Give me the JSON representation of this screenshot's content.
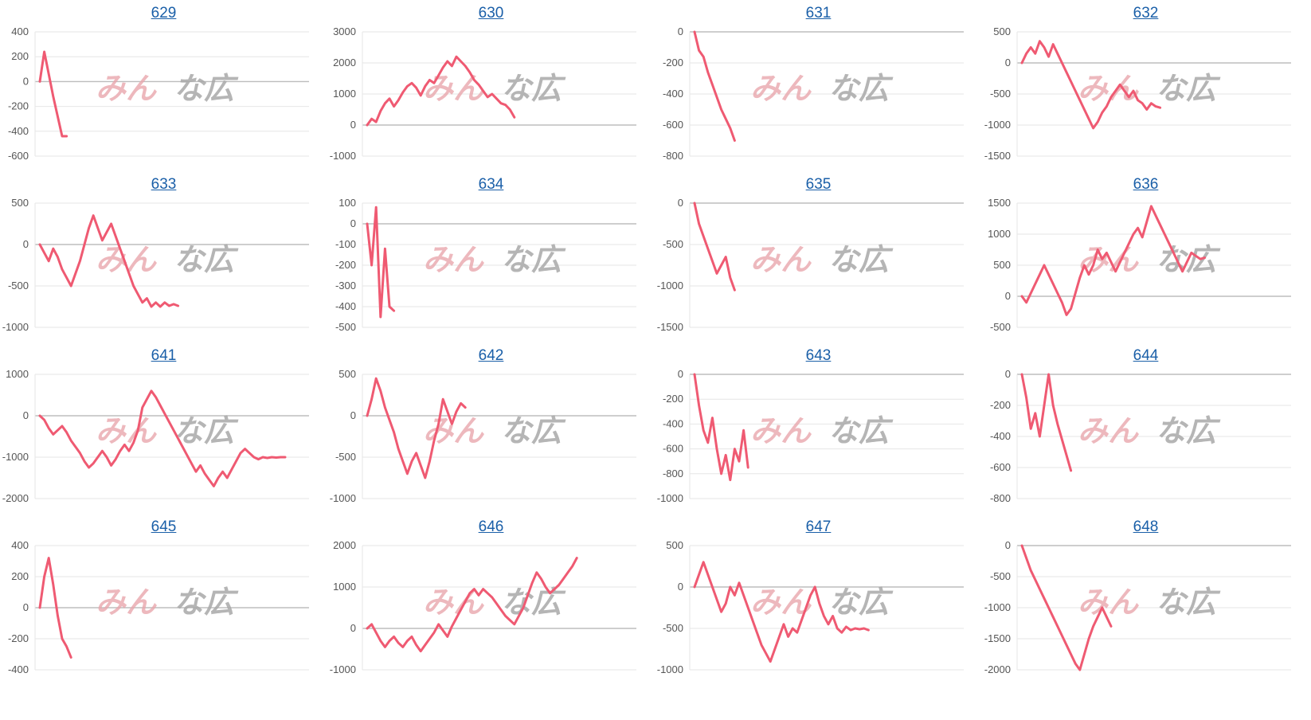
{
  "watermark": {
    "left": "みん",
    "right": "な広"
  },
  "colors": {
    "line": "#ef5a72",
    "grid": "#e6e6e6",
    "zero": "#bdbdbd",
    "title": "#1a5fa8"
  },
  "chart_data": [
    {
      "type": "line",
      "title": "629",
      "ylim": [
        -600,
        400
      ],
      "yticks": [
        400,
        200,
        0,
        -200,
        -400,
        -600
      ],
      "x": [
        0,
        1,
        2,
        3,
        4,
        5,
        6
      ],
      "values": [
        0,
        240,
        60,
        -120,
        -280,
        -440,
        -440
      ]
    },
    {
      "type": "line",
      "title": "630",
      "ylim": [
        -1000,
        3000
      ],
      "yticks": [
        3000,
        2000,
        1000,
        0,
        -1000
      ],
      "x": [
        0,
        1,
        2,
        3,
        4,
        5,
        6,
        7,
        8,
        9,
        10,
        11,
        12,
        13,
        14,
        15,
        16,
        17,
        18,
        19,
        20,
        21,
        22,
        23,
        24,
        25,
        26,
        27,
        28,
        29,
        30,
        31,
        32,
        33
      ],
      "values": [
        0,
        200,
        100,
        450,
        700,
        850,
        600,
        800,
        1050,
        1250,
        1350,
        1200,
        950,
        1250,
        1450,
        1350,
        1600,
        1850,
        2050,
        1900,
        2200,
        2050,
        1900,
        1700,
        1450,
        1300,
        1100,
        900,
        1000,
        850,
        700,
        650,
        500,
        250
      ]
    },
    {
      "type": "line",
      "title": "631",
      "ylim": [
        -800,
        0
      ],
      "yticks": [
        0,
        -200,
        -400,
        -600,
        -800
      ],
      "x": [
        0,
        1,
        2,
        3,
        4,
        5,
        6,
        7,
        8,
        9
      ],
      "values": [
        0,
        -120,
        -160,
        -260,
        -340,
        -420,
        -500,
        -560,
        -620,
        -700
      ]
    },
    {
      "type": "line",
      "title": "632",
      "ylim": [
        -1500,
        500
      ],
      "yticks": [
        500,
        0,
        -500,
        -1000,
        -1500
      ],
      "x": [
        0,
        1,
        2,
        3,
        4,
        5,
        6,
        7,
        8,
        9,
        10,
        11,
        12,
        13,
        14,
        15,
        16,
        17,
        18,
        19,
        20,
        21,
        22,
        23,
        24,
        25,
        26,
        27,
        28,
        29,
        30,
        31
      ],
      "values": [
        0,
        150,
        250,
        150,
        350,
        250,
        100,
        300,
        150,
        0,
        -150,
        -300,
        -450,
        -600,
        -750,
        -900,
        -1050,
        -950,
        -800,
        -700,
        -550,
        -450,
        -350,
        -450,
        -550,
        -450,
        -600,
        -650,
        -750,
        -650,
        -700,
        -720
      ]
    },
    {
      "type": "line",
      "title": "633",
      "ylim": [
        -1000,
        500
      ],
      "yticks": [
        500,
        0,
        -500,
        -1000
      ],
      "x": [
        0,
        1,
        2,
        3,
        4,
        5,
        6,
        7,
        8,
        9,
        10,
        11,
        12,
        13,
        14,
        15,
        16,
        17,
        18,
        19,
        20,
        21,
        22,
        23,
        24,
        25,
        26,
        27,
        28,
        29,
        30,
        31
      ],
      "values": [
        0,
        -100,
        -200,
        -50,
        -150,
        -300,
        -400,
        -500,
        -350,
        -200,
        0,
        200,
        350,
        200,
        50,
        150,
        250,
        100,
        -50,
        -200,
        -350,
        -500,
        -600,
        -700,
        -650,
        -750,
        -700,
        -750,
        -700,
        -740,
        -720,
        -740
      ]
    },
    {
      "type": "line",
      "title": "634",
      "ylim": [
        -500,
        100
      ],
      "yticks": [
        100,
        0,
        -100,
        -200,
        -300,
        -400,
        -500
      ],
      "x": [
        0,
        1,
        2,
        3,
        4,
        5,
        6
      ],
      "values": [
        0,
        -200,
        80,
        -450,
        -120,
        -400,
        -420
      ]
    },
    {
      "type": "line",
      "title": "635",
      "ylim": [
        -1500,
        0
      ],
      "yticks": [
        0,
        -500,
        -1000,
        -1500
      ],
      "x": [
        0,
        1,
        2,
        3,
        4,
        5,
        6,
        7,
        8,
        9
      ],
      "values": [
        0,
        -250,
        -400,
        -550,
        -700,
        -850,
        -750,
        -650,
        -900,
        -1050
      ]
    },
    {
      "type": "line",
      "title": "636",
      "ylim": [
        -500,
        1500
      ],
      "yticks": [
        1500,
        1000,
        500,
        0,
        -500
      ],
      "x": [
        0,
        1,
        2,
        3,
        4,
        5,
        6,
        7,
        8,
        9,
        10,
        11,
        12,
        13,
        14,
        15,
        16,
        17,
        18,
        19,
        20,
        21,
        22,
        23,
        24,
        25,
        26,
        27,
        28,
        29,
        30,
        31,
        32,
        33,
        34,
        35,
        36,
        37,
        38,
        39,
        40,
        41
      ],
      "values": [
        0,
        -100,
        50,
        200,
        350,
        500,
        350,
        200,
        50,
        -100,
        -300,
        -200,
        50,
        300,
        500,
        350,
        500,
        750,
        600,
        700,
        550,
        400,
        550,
        700,
        850,
        1000,
        1100,
        950,
        1200,
        1450,
        1300,
        1150,
        1000,
        850,
        700,
        550,
        400,
        550,
        700,
        650,
        600,
        620
      ]
    },
    {
      "type": "line",
      "title": "641",
      "ylim": [
        -2000,
        1000
      ],
      "yticks": [
        1000,
        0,
        -1000,
        -2000
      ],
      "x": [
        0,
        1,
        2,
        3,
        4,
        5,
        6,
        7,
        8,
        9,
        10,
        11,
        12,
        13,
        14,
        15,
        16,
        17,
        18,
        19,
        20,
        21,
        22,
        23,
        24,
        25,
        26,
        27,
        28,
        29,
        30,
        31,
        32,
        33,
        34,
        35,
        36,
        37,
        38,
        39,
        40,
        41,
        42,
        43,
        44,
        45,
        46,
        47,
        48,
        49,
        50,
        51,
        52,
        53,
        54,
        55
      ],
      "values": [
        0,
        -100,
        -300,
        -450,
        -350,
        -250,
        -400,
        -600,
        -750,
        -900,
        -1100,
        -1250,
        -1150,
        -1000,
        -850,
        -1000,
        -1200,
        -1050,
        -850,
        -700,
        -850,
        -650,
        -350,
        200,
        400,
        600,
        450,
        250,
        50,
        -150,
        -350,
        -550,
        -750,
        -950,
        -1150,
        -1350,
        -1200,
        -1400,
        -1550,
        -1700,
        -1500,
        -1350,
        -1500,
        -1300,
        -1100,
        -900,
        -800,
        -900,
        -1000,
        -1050,
        -1000,
        -1020,
        -1000,
        -1010,
        -1000,
        -1000
      ]
    },
    {
      "type": "line",
      "title": "642",
      "ylim": [
        -1000,
        500
      ],
      "yticks": [
        500,
        0,
        -500,
        -1000
      ],
      "x": [
        0,
        1,
        2,
        3,
        4,
        5,
        6,
        7,
        8,
        9,
        10,
        11,
        12,
        13,
        14,
        15,
        16,
        17,
        18,
        19,
        20,
        21,
        22
      ],
      "values": [
        0,
        200,
        450,
        300,
        100,
        -50,
        -200,
        -400,
        -550,
        -700,
        -550,
        -450,
        -600,
        -750,
        -550,
        -300,
        -100,
        200,
        50,
        -100,
        50,
        150,
        100
      ]
    },
    {
      "type": "line",
      "title": "643",
      "ylim": [
        -1000,
        0
      ],
      "yticks": [
        0,
        -200,
        -400,
        -600,
        -800,
        -1000
      ],
      "x": [
        0,
        1,
        2,
        3,
        4,
        5,
        6,
        7,
        8,
        9,
        10,
        11,
        12
      ],
      "values": [
        0,
        -250,
        -450,
        -550,
        -350,
        -600,
        -800,
        -650,
        -850,
        -600,
        -700,
        -450,
        -750
      ]
    },
    {
      "type": "line",
      "title": "644",
      "ylim": [
        -800,
        0
      ],
      "yticks": [
        0,
        -200,
        -400,
        -600,
        -800
      ],
      "x": [
        0,
        1,
        2,
        3,
        4,
        5,
        6,
        7,
        8,
        9,
        10,
        11
      ],
      "values": [
        0,
        -150,
        -350,
        -250,
        -400,
        -200,
        0,
        -200,
        -320,
        -420,
        -520,
        -620
      ]
    },
    {
      "type": "line",
      "title": "645",
      "ylim": [
        -400,
        400
      ],
      "yticks": [
        400,
        200,
        0,
        -200,
        -400
      ],
      "x": [
        0,
        1,
        2,
        3,
        4,
        5,
        6,
        7
      ],
      "values": [
        0,
        200,
        320,
        150,
        -50,
        -200,
        -250,
        -320
      ]
    },
    {
      "type": "line",
      "title": "646",
      "ylim": [
        -1000,
        2000
      ],
      "yticks": [
        2000,
        1000,
        0,
        -1000
      ],
      "x": [
        0,
        1,
        2,
        3,
        4,
        5,
        6,
        7,
        8,
        9,
        10,
        11,
        12,
        13,
        14,
        15,
        16,
        17,
        18,
        19,
        20,
        21,
        22,
        23,
        24,
        25,
        26,
        27,
        28,
        29,
        30,
        31,
        32,
        33,
        34,
        35,
        36,
        37,
        38,
        39,
        40,
        41,
        42,
        43,
        44,
        45,
        46,
        47
      ],
      "values": [
        0,
        100,
        -100,
        -300,
        -450,
        -300,
        -200,
        -350,
        -450,
        -300,
        -200,
        -400,
        -550,
        -400,
        -250,
        -100,
        100,
        -50,
        -200,
        50,
        250,
        450,
        650,
        850,
        950,
        800,
        950,
        850,
        750,
        600,
        450,
        300,
        200,
        100,
        300,
        500,
        800,
        1100,
        1350,
        1200,
        1000,
        850,
        950,
        1050,
        1200,
        1350,
        1500,
        1700
      ]
    },
    {
      "type": "line",
      "title": "647",
      "ylim": [
        -1000,
        500
      ],
      "yticks": [
        500,
        0,
        -500,
        -1000
      ],
      "x": [
        0,
        1,
        2,
        3,
        4,
        5,
        6,
        7,
        8,
        9,
        10,
        11,
        12,
        13,
        14,
        15,
        16,
        17,
        18,
        19,
        20,
        21,
        22,
        23,
        24,
        25,
        26,
        27,
        28,
        29,
        30,
        31,
        32,
        33,
        34,
        35,
        36,
        37,
        38,
        39
      ],
      "values": [
        0,
        150,
        300,
        150,
        0,
        -150,
        -300,
        -200,
        0,
        -100,
        50,
        -100,
        -250,
        -400,
        -550,
        -700,
        -800,
        -900,
        -750,
        -600,
        -450,
        -600,
        -500,
        -550,
        -400,
        -250,
        -100,
        0,
        -200,
        -350,
        -450,
        -350,
        -500,
        -550,
        -480,
        -520,
        -500,
        -510,
        -500,
        -520
      ]
    },
    {
      "type": "line",
      "title": "648",
      "ylim": [
        -2000,
        0
      ],
      "yticks": [
        0,
        -500,
        -1000,
        -1500,
        -2000
      ],
      "x": [
        0,
        1,
        2,
        3,
        4,
        5,
        6,
        7,
        8,
        9,
        10,
        11,
        12,
        13,
        14,
        15,
        16,
        17,
        18,
        19,
        20
      ],
      "values": [
        0,
        -200,
        -400,
        -550,
        -700,
        -850,
        -1000,
        -1150,
        -1300,
        -1450,
        -1600,
        -1750,
        -1900,
        -2000,
        -1750,
        -1500,
        -1300,
        -1150,
        -1000,
        -1150,
        -1300
      ]
    }
  ]
}
